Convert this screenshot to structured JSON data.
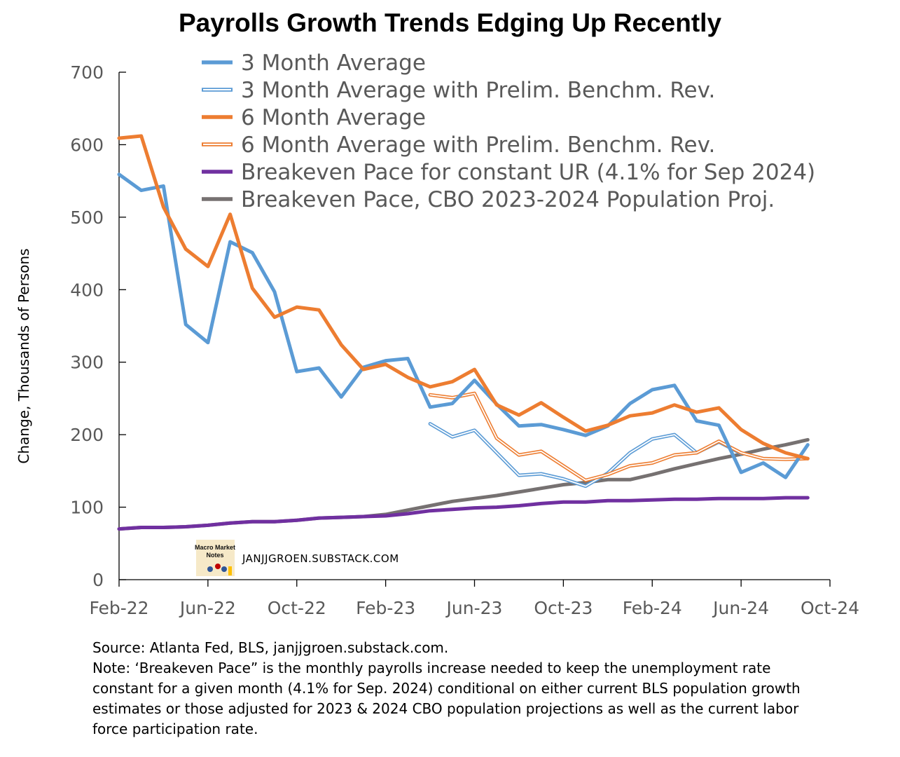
{
  "chart_data": {
    "type": "line",
    "title": "Payrolls Growth Trends Edging Up Recently",
    "ylabel": "Change, Thousands of Persons",
    "xlabel": "",
    "ylim": [
      0,
      700
    ],
    "yticks": [
      0,
      100,
      200,
      300,
      400,
      500,
      600,
      700
    ],
    "x_tick_labels": [
      "Feb-22",
      "Jun-22",
      "Oct-22",
      "Feb-23",
      "Jun-23",
      "Oct-23",
      "Feb-24",
      "Jun-24",
      "Oct-24"
    ],
    "x_tick_months": [
      "2022-02",
      "2022-06",
      "2022-10",
      "2023-02",
      "2023-06",
      "2023-10",
      "2024-02",
      "2024-06",
      "2024-10"
    ],
    "x_range": [
      "2022-02",
      "2024-10"
    ],
    "months": [
      "2022-02",
      "2022-03",
      "2022-04",
      "2022-05",
      "2022-06",
      "2022-07",
      "2022-08",
      "2022-09",
      "2022-10",
      "2022-11",
      "2022-12",
      "2023-01",
      "2023-02",
      "2023-03",
      "2023-04",
      "2023-05",
      "2023-06",
      "2023-07",
      "2023-08",
      "2023-09",
      "2023-10",
      "2023-11",
      "2023-12",
      "2024-01",
      "2024-02",
      "2024-03",
      "2024-04",
      "2024-05",
      "2024-06",
      "2024-07",
      "2024-08",
      "2024-09"
    ],
    "grid": false,
    "legend_position": "top",
    "series": [
      {
        "name": "3 Month Average",
        "color": "#5B9BD5",
        "style": "solid",
        "start": "2022-02",
        "values": [
          559,
          537,
          543,
          352,
          327,
          466,
          451,
          397,
          287,
          292,
          252,
          293,
          302,
          305,
          238,
          243,
          275,
          242,
          212,
          214,
          207,
          199,
          212,
          243,
          262,
          268,
          219,
          213,
          148,
          161,
          141,
          186
        ]
      },
      {
        "name": "3 Month Average with Prelim. Benchm. Rev.",
        "color": "#5B9BD5",
        "style": "double",
        "start": "2023-04",
        "values": [
          215,
          197,
          206,
          175,
          144,
          146,
          139,
          129,
          147,
          175,
          194,
          200,
          175,
          190,
          174
        ]
      },
      {
        "name": "6 Month Average",
        "color": "#ED7D31",
        "style": "solid",
        "start": "2022-02",
        "values": [
          609,
          612,
          514,
          456,
          432,
          504,
          402,
          362,
          376,
          372,
          324,
          290,
          297,
          279,
          266,
          273,
          290,
          241,
          227,
          244,
          224,
          205,
          213,
          226,
          230,
          241,
          231,
          237,
          207,
          188,
          175,
          167
        ]
      },
      {
        "name": "6 Month Average with Prelim. Benchm. Rev.",
        "color": "#ED7D31",
        "style": "double",
        "start": "2023-04",
        "values": [
          255,
          251,
          257,
          195,
          172,
          177,
          157,
          137,
          145,
          157,
          161,
          172,
          175,
          191,
          175,
          167,
          166,
          167
        ]
      },
      {
        "name": "Breakeven Pace for constant UR (4.1% for Sep 2024)",
        "color": "#7030A0",
        "style": "solid",
        "start": "2022-02",
        "values": [
          70,
          72,
          72,
          73,
          75,
          78,
          80,
          80,
          82,
          85,
          86,
          87,
          88,
          91,
          95,
          97,
          99,
          100,
          102,
          105,
          107,
          107,
          109,
          109,
          110,
          111,
          111,
          112,
          112,
          112,
          113,
          113
        ]
      },
      {
        "name": "Breakeven Pace, CBO 2023-2024 Population Proj.",
        "color": "#767171",
        "style": "solid",
        "start": "2022-02",
        "values": [
          70,
          72,
          72,
          73,
          75,
          78,
          80,
          80,
          82,
          85,
          86,
          87,
          90,
          96,
          102,
          108,
          112,
          116,
          121,
          126,
          131,
          134,
          138,
          138,
          145,
          153,
          160,
          167,
          173,
          180,
          186,
          193
        ]
      }
    ]
  },
  "watermark": {
    "logo_text": "Macro Market Notes",
    "text": "JANJJGROEN.SUBSTACK.COM"
  },
  "notes": {
    "source": "Source: Atlanta Fed, BLS, janjjgroen.substack.com.",
    "note_lines": [
      "Note: ‘Breakeven Pace” is the monthly payrolls increase needed to keep the unemployment rate",
      "constant for a given month (4.1% for Sep. 2024) conditional on either current BLS population growth",
      "estimates or those adjusted for 2023 & 2024 CBO population projections as well as the current labor",
      "force participation rate."
    ]
  }
}
